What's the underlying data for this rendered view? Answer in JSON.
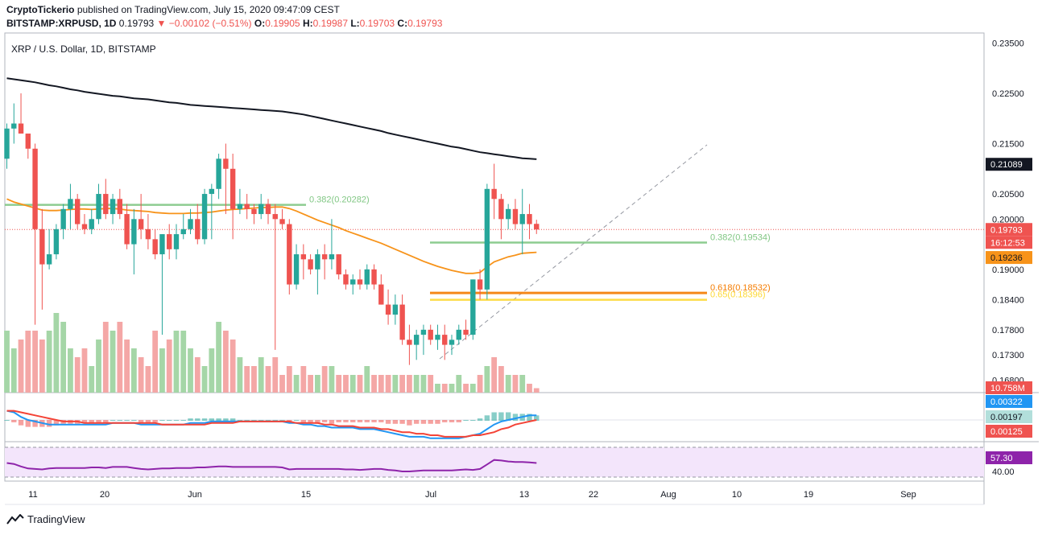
{
  "header": {
    "publisher": "CryptoTickerio",
    "published_text": "published on TradingView.com, July 15, 2020 09:47:09 CEST",
    "symbol": "BITSTAMP:XRPUSD, 1D",
    "last": "0.19793",
    "change": "−0.00102 (−0.51%)",
    "o_label": "O:",
    "o_value": "0.19905",
    "h_label": "H:",
    "h_value": "0.19987",
    "l_label": "L:",
    "l_value": "0.19703",
    "c_label": "C:",
    "c_value": "0.19793"
  },
  "footer": {
    "brand": "TradingView"
  },
  "colors": {
    "up": "#26a69a",
    "down": "#ef5350",
    "sma200": "#131722",
    "ema50": "#f7931a",
    "fib382": "#81c784",
    "fib618": "#f57c00",
    "fib65": "#fdd835",
    "rsi": "#8e24aa",
    "macd": "#2196f3",
    "signal": "#f44336"
  },
  "chart_data": {
    "type": "candlestick",
    "title": "XRP / U.S. Dollar, 1D, BITSTAMP",
    "price_ticks": [
      "0.23500",
      "0.22500",
      "0.21500",
      "0.20500",
      "0.20000",
      "0.19000",
      "0.18400",
      "0.17800",
      "0.17300",
      "0.16800"
    ],
    "price_ylim": [
      0.1655,
      0.237
    ],
    "x_ticks": [
      "11",
      "20",
      "Jun",
      "15",
      "Jul",
      "13",
      "22",
      "Aug",
      "10",
      "19",
      "Sep"
    ],
    "price_badges": [
      {
        "label": "0.21089",
        "value": 0.21089,
        "kind": "sma200"
      },
      {
        "label": "0.19793",
        "value": 0.19793,
        "kind": "last"
      },
      {
        "label": "16:12:53",
        "value": 0.19585,
        "kind": "timer"
      },
      {
        "label": "0.19236",
        "value": 0.19236,
        "kind": "ema50"
      }
    ],
    "fib_levels": [
      {
        "label": "0.382(0.20282)",
        "value": 0.20282,
        "kind": "fib382"
      },
      {
        "label": "0.382(0.19534)",
        "value": 0.19534,
        "kind": "fib382"
      },
      {
        "label": "0.618(0.18532)",
        "value": 0.18532,
        "kind": "fib618"
      },
      {
        "label": "0.65(0.18396)",
        "value": 0.18396,
        "kind": "fib65"
      }
    ],
    "volume_label": "10.758M",
    "macd_labels": [
      "0.00322",
      "0.00197",
      "0.00125"
    ],
    "rsi_labels": [
      "57.30",
      "40.00"
    ],
    "candles": [
      [
        0.212,
        0.219,
        0.21,
        0.218
      ],
      [
        0.218,
        0.223,
        0.215,
        0.219
      ],
      [
        0.219,
        0.225,
        0.217,
        0.217
      ],
      [
        0.217,
        0.217,
        0.212,
        0.214
      ],
      [
        0.214,
        0.215,
        0.179,
        0.198
      ],
      [
        0.198,
        0.202,
        0.182,
        0.191
      ],
      [
        0.191,
        0.198,
        0.19,
        0.193
      ],
      [
        0.193,
        0.199,
        0.192,
        0.198
      ],
      [
        0.198,
        0.203,
        0.196,
        0.202
      ],
      [
        0.202,
        0.207,
        0.198,
        0.204
      ],
      [
        0.204,
        0.205,
        0.198,
        0.199
      ],
      [
        0.199,
        0.201,
        0.197,
        0.198
      ],
      [
        0.198,
        0.202,
        0.197,
        0.2
      ],
      [
        0.2,
        0.207,
        0.199,
        0.205
      ],
      [
        0.205,
        0.208,
        0.2,
        0.201
      ],
      [
        0.201,
        0.205,
        0.199,
        0.204
      ],
      [
        0.204,
        0.206,
        0.2,
        0.201
      ],
      [
        0.201,
        0.203,
        0.194,
        0.195
      ],
      [
        0.195,
        0.202,
        0.189,
        0.2
      ],
      [
        0.2,
        0.205,
        0.196,
        0.198
      ],
      [
        0.198,
        0.201,
        0.194,
        0.196
      ],
      [
        0.196,
        0.198,
        0.192,
        0.193
      ],
      [
        0.193,
        0.197,
        0.177,
        0.197
      ],
      [
        0.197,
        0.199,
        0.192,
        0.194
      ],
      [
        0.194,
        0.199,
        0.192,
        0.197
      ],
      [
        0.197,
        0.201,
        0.196,
        0.198
      ],
      [
        0.198,
        0.202,
        0.197,
        0.2
      ],
      [
        0.2,
        0.203,
        0.195,
        0.196
      ],
      [
        0.196,
        0.206,
        0.195,
        0.205
      ],
      [
        0.205,
        0.207,
        0.196,
        0.206
      ],
      [
        0.206,
        0.213,
        0.204,
        0.212
      ],
      [
        0.212,
        0.215,
        0.201,
        0.21
      ],
      [
        0.21,
        0.213,
        0.196,
        0.202
      ],
      [
        0.202,
        0.206,
        0.201,
        0.203
      ],
      [
        0.203,
        0.205,
        0.2,
        0.202
      ],
      [
        0.202,
        0.203,
        0.199,
        0.201
      ],
      [
        0.201,
        0.205,
        0.2,
        0.203
      ],
      [
        0.203,
        0.204,
        0.199,
        0.201
      ],
      [
        0.201,
        0.203,
        0.174,
        0.2
      ],
      [
        0.2,
        0.202,
        0.198,
        0.199
      ],
      [
        0.199,
        0.2,
        0.185,
        0.187
      ],
      [
        0.187,
        0.195,
        0.186,
        0.193
      ],
      [
        0.193,
        0.195,
        0.188,
        0.192
      ],
      [
        0.192,
        0.193,
        0.189,
        0.19
      ],
      [
        0.19,
        0.194,
        0.185,
        0.193
      ],
      [
        0.193,
        0.195,
        0.188,
        0.192
      ],
      [
        0.192,
        0.2,
        0.19,
        0.193
      ],
      [
        0.193,
        0.193,
        0.188,
        0.189
      ],
      [
        0.189,
        0.19,
        0.186,
        0.187
      ],
      [
        0.187,
        0.189,
        0.185,
        0.188
      ],
      [
        0.188,
        0.19,
        0.186,
        0.187
      ],
      [
        0.187,
        0.191,
        0.186,
        0.19
      ],
      [
        0.19,
        0.191,
        0.186,
        0.187
      ],
      [
        0.187,
        0.189,
        0.183,
        0.183
      ],
      [
        0.183,
        0.186,
        0.179,
        0.181
      ],
      [
        0.181,
        0.185,
        0.179,
        0.183
      ],
      [
        0.183,
        0.185,
        0.175,
        0.176
      ],
      [
        0.176,
        0.179,
        0.171,
        0.175
      ],
      [
        0.175,
        0.178,
        0.172,
        0.177
      ],
      [
        0.177,
        0.179,
        0.173,
        0.178
      ],
      [
        0.178,
        0.179,
        0.175,
        0.176
      ],
      [
        0.176,
        0.179,
        0.174,
        0.177
      ],
      [
        0.177,
        0.179,
        0.172,
        0.175
      ],
      [
        0.175,
        0.177,
        0.173,
        0.176
      ],
      [
        0.176,
        0.179,
        0.175,
        0.178
      ],
      [
        0.178,
        0.18,
        0.176,
        0.177
      ],
      [
        0.177,
        0.188,
        0.176,
        0.188
      ],
      [
        0.188,
        0.19,
        0.184,
        0.186
      ],
      [
        0.186,
        0.207,
        0.184,
        0.206
      ],
      [
        0.206,
        0.211,
        0.2,
        0.204
      ],
      [
        0.204,
        0.205,
        0.196,
        0.2
      ],
      [
        0.2,
        0.203,
        0.198,
        0.202
      ],
      [
        0.202,
        0.204,
        0.198,
        0.199
      ],
      [
        0.199,
        0.206,
        0.193,
        0.201
      ],
      [
        0.201,
        0.203,
        0.196,
        0.199
      ],
      [
        0.19905,
        0.19987,
        0.19703,
        0.19793
      ]
    ],
    "volume": [
      7,
      5,
      6,
      7,
      7,
      6,
      7,
      9,
      8,
      5,
      4,
      5,
      3,
      6,
      8,
      7,
      8,
      6,
      5,
      4,
      3,
      7,
      5,
      6,
      7,
      7,
      5,
      4,
      3,
      5,
      8,
      7,
      6,
      4,
      3,
      3,
      4,
      3,
      4,
      2,
      3,
      2,
      3,
      2,
      2,
      3,
      3,
      2,
      2,
      2,
      2,
      3,
      2,
      2,
      2,
      2,
      2,
      2,
      2,
      2,
      2,
      1,
      1,
      1,
      2,
      1,
      1,
      2,
      3,
      4,
      3,
      2,
      2,
      2,
      1,
      0.5
    ],
    "volume_dir": [
      1,
      1,
      -1,
      -1,
      -1,
      -1,
      1,
      1,
      1,
      1,
      -1,
      -1,
      1,
      1,
      -1,
      1,
      -1,
      -1,
      1,
      -1,
      -1,
      -1,
      1,
      -1,
      1,
      1,
      1,
      -1,
      1,
      1,
      1,
      -1,
      -1,
      1,
      -1,
      -1,
      1,
      -1,
      -1,
      -1,
      -1,
      1,
      -1,
      -1,
      1,
      -1,
      1,
      -1,
      -1,
      1,
      -1,
      1,
      -1,
      -1,
      -1,
      1,
      -1,
      -1,
      1,
      1,
      -1,
      1,
      -1,
      1,
      1,
      -1,
      1,
      -1,
      1,
      -1,
      -1,
      1,
      -1,
      1,
      -1,
      -1
    ],
    "sma200": [
      0.228,
      0.2278,
      0.2276,
      0.2274,
      0.2272,
      0.2269,
      0.2266,
      0.2264,
      0.2261,
      0.2258,
      0.2256,
      0.2253,
      0.2251,
      0.2249,
      0.2247,
      0.2245,
      0.2244,
      0.2242,
      0.224,
      0.2239,
      0.2238,
      0.2236,
      0.2234,
      0.2232,
      0.2231,
      0.2229,
      0.2227,
      0.2226,
      0.2225,
      0.2224,
      0.2223,
      0.2222,
      0.2221,
      0.222,
      0.2219,
      0.2218,
      0.2217,
      0.2216,
      0.2215,
      0.2214,
      0.2212,
      0.221,
      0.2208,
      0.2205,
      0.2202,
      0.2199,
      0.2196,
      0.2193,
      0.219,
      0.2187,
      0.2184,
      0.2181,
      0.2178,
      0.2175,
      0.2171,
      0.2168,
      0.2165,
      0.2162,
      0.2159,
      0.2156,
      0.2153,
      0.215,
      0.2147,
      0.2144,
      0.2142,
      0.2139,
      0.2136,
      0.2133,
      0.2131,
      0.2129,
      0.2127,
      0.2125,
      0.2123,
      0.2121,
      0.212,
      0.2119
    ],
    "ema50": [
      0.204,
      0.2034,
      0.203,
      0.2026,
      0.2022,
      0.2018,
      0.2017,
      0.2017,
      0.2018,
      0.2019,
      0.202,
      0.202,
      0.2019,
      0.202,
      0.2021,
      0.2021,
      0.202,
      0.2018,
      0.2017,
      0.2016,
      0.2015,
      0.2013,
      0.2012,
      0.2011,
      0.2011,
      0.2011,
      0.2012,
      0.2012,
      0.2013,
      0.2014,
      0.2016,
      0.2018,
      0.2019,
      0.202,
      0.2021,
      0.2022,
      0.2023,
      0.2023,
      0.2024,
      0.2024,
      0.2021,
      0.2016,
      0.201,
      0.2004,
      0.1998,
      0.1993,
      0.1988,
      0.1983,
      0.1977,
      0.1972,
      0.1967,
      0.1962,
      0.1957,
      0.1952,
      0.1946,
      0.194,
      0.1934,
      0.1928,
      0.1922,
      0.1916,
      0.1911,
      0.1906,
      0.1902,
      0.1898,
      0.1895,
      0.1892,
      0.1892,
      0.1894,
      0.1905,
      0.1915,
      0.192,
      0.1925,
      0.1928,
      0.1932,
      0.1933,
      0.1934
    ],
    "macd": [
      6,
      5,
      2,
      0,
      -1,
      -2,
      -3,
      -3,
      -3,
      -3,
      -3,
      -3,
      -3,
      -3,
      -3,
      -2,
      -2,
      -2,
      -2,
      -3,
      -3,
      -3,
      -3,
      -3,
      -3,
      -3,
      -2,
      -2,
      -2,
      -1,
      -1,
      -1,
      -1,
      -1,
      -1,
      -1,
      -1,
      -1,
      -1,
      -1,
      -2,
      -2,
      -3,
      -3,
      -4,
      -4,
      -5,
      -5,
      -5,
      -5,
      -6,
      -6,
      -6,
      -7,
      -8,
      -9,
      -10,
      -11,
      -11,
      -11,
      -12,
      -12,
      -12,
      -12,
      -12,
      -11,
      -10,
      -9,
      -6,
      -3,
      -1,
      0,
      1,
      2,
      3,
      3
    ],
    "signal": [
      6,
      6,
      5,
      4,
      3,
      2,
      1,
      0,
      -1,
      -1,
      -1,
      -2,
      -2,
      -2,
      -2,
      -2,
      -2,
      -2,
      -2,
      -2,
      -2,
      -2,
      -3,
      -3,
      -3,
      -3,
      -3,
      -3,
      -3,
      -2,
      -2,
      -2,
      -2,
      -1,
      -1,
      -1,
      -1,
      -1,
      -1,
      -1,
      -1,
      -2,
      -2,
      -2,
      -2,
      -3,
      -3,
      -4,
      -4,
      -4,
      -5,
      -5,
      -5,
      -6,
      -6,
      -7,
      -8,
      -8,
      -9,
      -9,
      -10,
      -10,
      -11,
      -11,
      -11,
      -11,
      -10,
      -10,
      -9,
      -8,
      -6,
      -5,
      -3,
      -2,
      -1,
      0
    ],
    "rsi": [
      57,
      55,
      50,
      46,
      45,
      44,
      46,
      47,
      47,
      47,
      47,
      47,
      48,
      48,
      47,
      49,
      49,
      49,
      47,
      45,
      44,
      45,
      46,
      46,
      47,
      47,
      47,
      48,
      48,
      49,
      50,
      50,
      49,
      49,
      49,
      49,
      49,
      49,
      49,
      48,
      44,
      45,
      45,
      45,
      45,
      45,
      45,
      45,
      44,
      44,
      43,
      44,
      45,
      45,
      43,
      42,
      40,
      40,
      41,
      42,
      42,
      42,
      42,
      42,
      43,
      44,
      43,
      45,
      54,
      63,
      62,
      60,
      59,
      59,
      58,
      57
    ]
  }
}
